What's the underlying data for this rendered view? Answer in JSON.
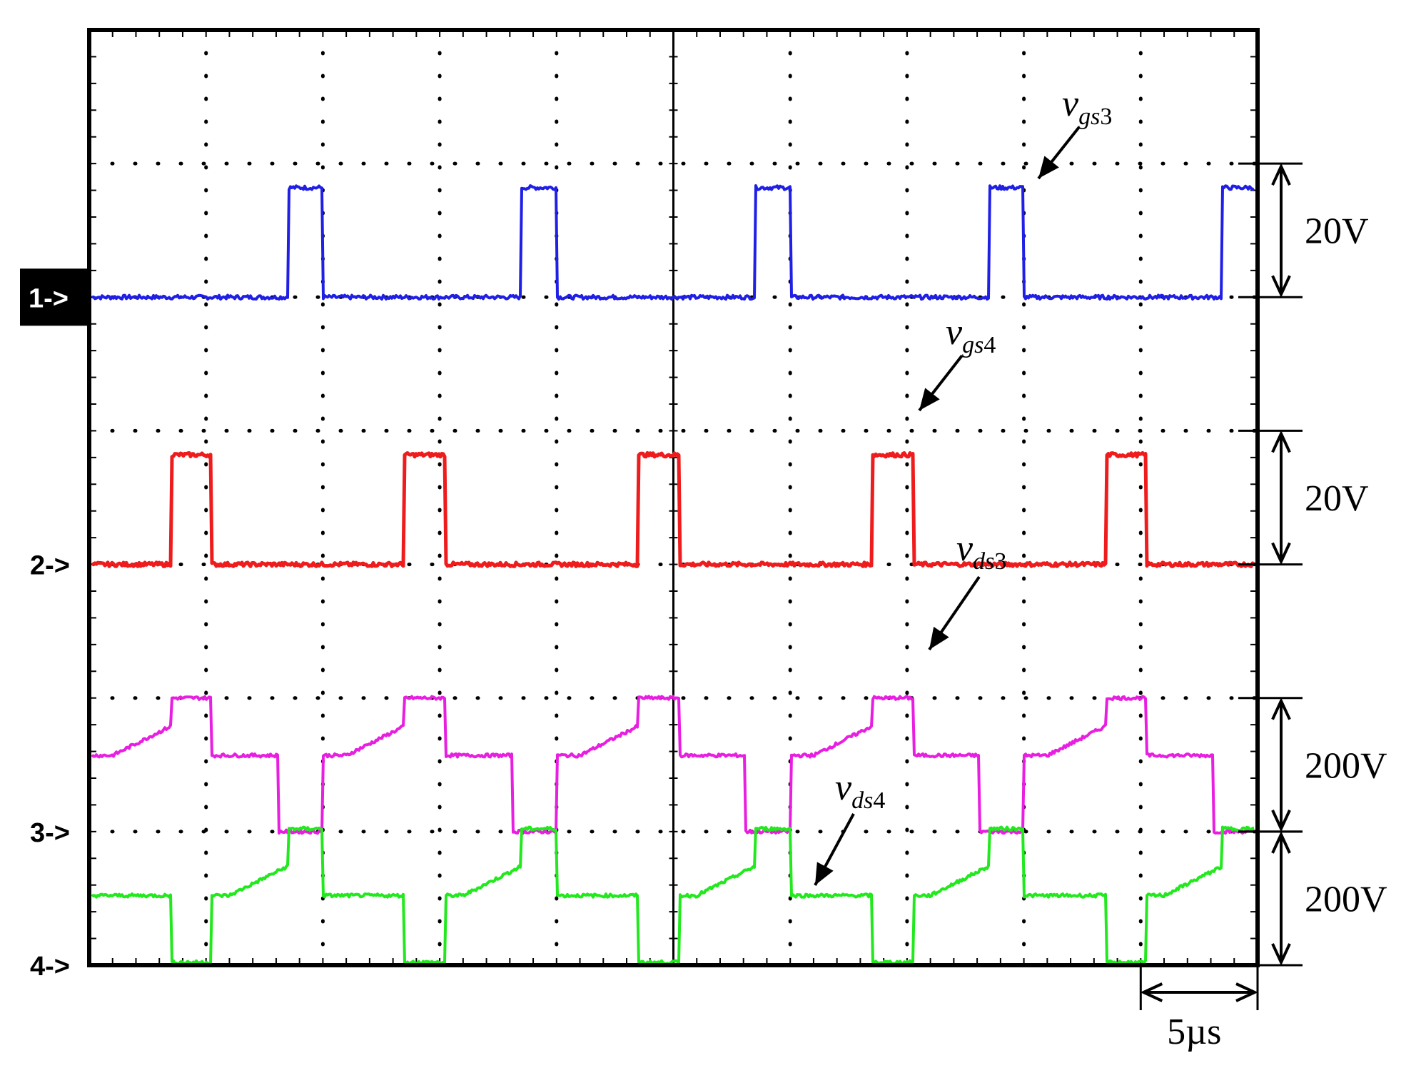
{
  "colors": {
    "ch1": "#1f1fe6",
    "ch2": "#ee1c1c",
    "ch3": "#e81ee0",
    "ch4": "#22e81e",
    "frame": "#000000",
    "grid": "#000000"
  },
  "chart_data": {
    "type": "line",
    "grid": true,
    "x_divisions": 10,
    "y_divisions": 7,
    "time_scale_label": "5µs",
    "channels": [
      {
        "marker": "1->",
        "marker_style": "inverted",
        "signal": "v",
        "subscript": "gs",
        "index": "3",
        "scale_label": "20V",
        "color_key": "ch1",
        "period_div": 2,
        "pulse_rise_div": 1.7,
        "pulse_fall_div": 2.05,
        "high_level_div": 0.82,
        "shape": "pulse"
      },
      {
        "marker": "2->",
        "marker_style": "plain",
        "signal": "v",
        "subscript": "gs",
        "index": "4",
        "scale_label": "20V",
        "color_key": "ch2",
        "period_div": 2,
        "pulse_rise_div": 0.7,
        "pulse_fall_div": 1.05,
        "high_level_div": 0.82,
        "shape": "pulse"
      },
      {
        "marker": "3->",
        "marker_style": "plain",
        "signal": "v",
        "subscript": "ds",
        "index": "3",
        "scale_label": "200V",
        "color_key": "ch3",
        "period_div": 2,
        "low_start_div": 1.62,
        "low_end_div": 2.02,
        "plateau_level_div": 0.57,
        "peak_level_div": 1.0,
        "peak_start_div": 0.7,
        "peak_end_div": 1.05,
        "shape": "drain"
      },
      {
        "marker": "4->",
        "marker_style": "plain",
        "signal": "v",
        "subscript": "ds",
        "index": "4",
        "scale_label": "200V",
        "color_key": "ch4",
        "period_div": 2,
        "low_start_div": 0.7,
        "low_end_div": 1.05,
        "plateau_level_div": 0.5,
        "peak_level_div": 1.0,
        "peak_start_div": 1.7,
        "peak_end_div": 2.05,
        "shape": "drain"
      }
    ]
  }
}
